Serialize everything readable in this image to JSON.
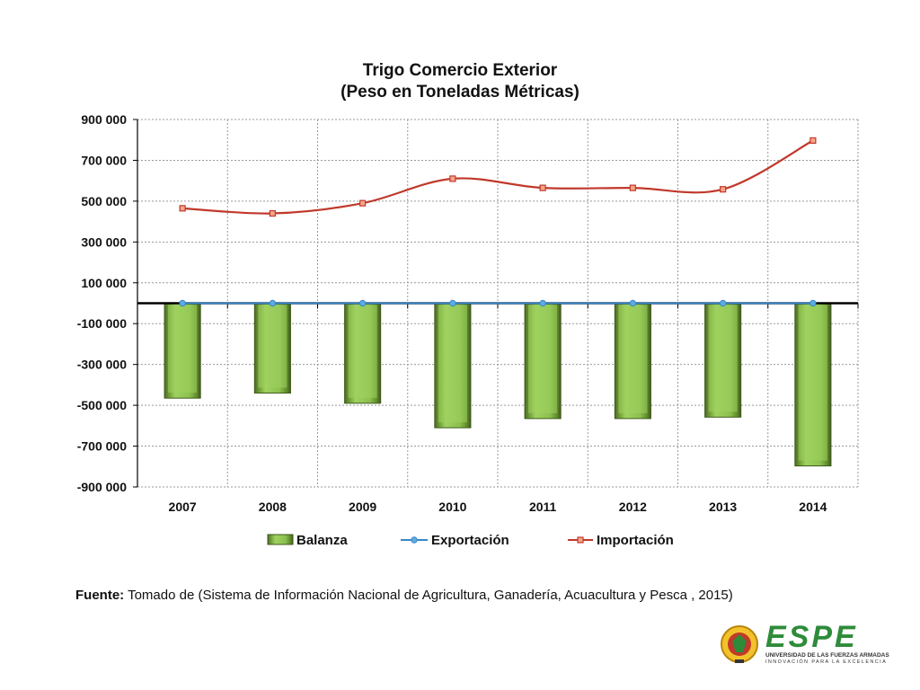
{
  "chart_data": {
    "type": "bar",
    "title": [
      "Trigo Comercio Exterior",
      "(Peso en Toneladas Métricas)"
    ],
    "categories": [
      "2007",
      "2008",
      "2009",
      "2010",
      "2011",
      "2012",
      "2013",
      "2014"
    ],
    "series": [
      {
        "name": "Balanza",
        "type": "bar",
        "values": [
          -465000,
          -440000,
          -490000,
          -610000,
          -565000,
          -565000,
          -558000,
          -797000
        ]
      },
      {
        "name": "Exportación",
        "type": "line",
        "values": [
          0,
          0,
          0,
          0,
          0,
          0,
          0,
          0
        ]
      },
      {
        "name": "Importación",
        "type": "line",
        "values": [
          465000,
          440000,
          490000,
          610000,
          565000,
          565000,
          558000,
          797000
        ]
      }
    ],
    "ylim": [
      -900000,
      900000
    ],
    "yticks": [
      900000,
      700000,
      500000,
      300000,
      100000,
      -100000,
      -300000,
      -500000,
      -700000,
      -900000
    ],
    "ytick_labels": [
      "900 000",
      "700 000",
      "500 000",
      "300 000",
      "100 000",
      "-100 000",
      "-300 000",
      "-500 000",
      "-700 000",
      "-900 000"
    ],
    "grid": true,
    "legend_position": "bottom",
    "colors": {
      "bar": "#8cc04e",
      "bar_dark": "#4c6b24",
      "export": "#3a87c8",
      "import": "#c0392b"
    }
  },
  "source": {
    "label": "Fuente:",
    "text": " Tomado de (Sistema de Información Nacional de Agricultura, Ganadería, Acuacultura y Pesca , 2015)"
  },
  "logo": {
    "wordmark": "ESPE",
    "line1": "UNIVERSIDAD DE LAS FUERZAS ARMADAS",
    "line2": "INNOVACIÓN PARA LA EXCELENCIA"
  }
}
